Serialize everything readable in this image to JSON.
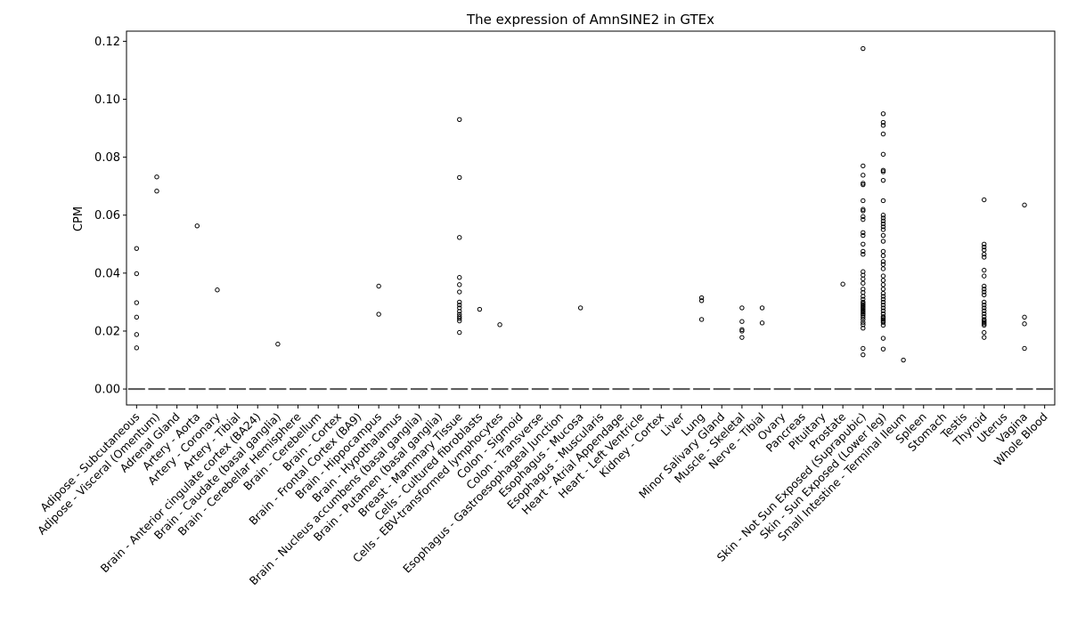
{
  "chart_data": {
    "type": "box",
    "title": "The expression of AmnSINE2 in GTEx",
    "xlabel": "",
    "ylabel": "CPM",
    "ylim": [
      -0.0055,
      0.1235
    ],
    "yticks": [
      0.0,
      0.02,
      0.04,
      0.06,
      0.08,
      0.1,
      0.12
    ],
    "grid": false,
    "categories": [
      "Adipose - Subcutaneous",
      "Adipose - Visceral (Omentum)",
      "Adrenal Gland",
      "Artery - Aorta",
      "Artery - Coronary",
      "Artery - Tibial",
      "Brain - Anterior cingulate cortex (BA24)",
      "Brain - Caudate (basal ganglia)",
      "Brain - Cerebellar Hemisphere",
      "Brain - Cerebellum",
      "Brain - Cortex",
      "Brain - Frontal Cortex (BA9)",
      "Brain - Hippocampus",
      "Brain - Hypothalamus",
      "Brain - Nucleus accumbens (basal ganglia)",
      "Brain - Putamen (basal ganglia)",
      "Breast - Mammary Tissue",
      "Cells - Cultured fibroblasts",
      "Cells - EBV-transformed lymphocytes",
      "Colon - Sigmoid",
      "Colon - Transverse",
      "Esophagus - Gastroesophageal Junction",
      "Esophagus - Mucosa",
      "Esophagus - Muscularis",
      "Heart - Atrial Appendage",
      "Heart - Left Ventricle",
      "Kidney - Cortex",
      "Liver",
      "Lung",
      "Minor Salivary Gland",
      "Muscle - Skeletal",
      "Nerve - Tibial",
      "Ovary",
      "Pancreas",
      "Pituitary",
      "Prostate",
      "Skin - Not Sun Exposed (Suprapubic)",
      "Skin - Sun Exposed (Lower leg)",
      "Small Intestine - Terminal Ileum",
      "Spleen",
      "Stomach",
      "Testis",
      "Thyroid",
      "Uterus",
      "Vagina",
      "Whole Blood"
    ],
    "median": 0,
    "outliers": [
      [
        0.0485,
        0.0398,
        0.0298,
        0.0248,
        0.0188,
        0.0142
      ],
      [
        0.0732,
        0.0683
      ],
      [],
      [
        0.0563
      ],
      [
        0.0342
      ],
      [],
      [],
      [
        0.0155
      ],
      [],
      [],
      [],
      [],
      [
        0.0355,
        0.0258
      ],
      [],
      [],
      [],
      [
        0.093,
        0.073,
        0.0523,
        0.0385,
        0.036,
        0.0335,
        0.03,
        0.029,
        0.028,
        0.0268,
        0.0258,
        0.025,
        0.0243,
        0.0235,
        0.0195
      ],
      [
        0.0275
      ],
      [
        0.0222
      ],
      [],
      [],
      [],
      [
        0.028
      ],
      [],
      [],
      [],
      [],
      [],
      [
        0.0315,
        0.0305,
        0.024
      ],
      [],
      [
        0.028,
        0.0233,
        0.0205,
        0.02,
        0.0178
      ],
      [
        0.028,
        0.0228
      ],
      [],
      [],
      [],
      [
        0.0362
      ],
      [
        0.1175,
        0.077,
        0.0738,
        0.071,
        0.0705,
        0.065,
        0.062,
        0.0615,
        0.0595,
        0.0585,
        0.054,
        0.053,
        0.05,
        0.0475,
        0.0465,
        0.0405,
        0.0393,
        0.038,
        0.0365,
        0.0345,
        0.0333,
        0.032,
        0.031,
        0.03,
        0.0295,
        0.029,
        0.0285,
        0.028,
        0.0275,
        0.027,
        0.0265,
        0.026,
        0.0255,
        0.0248,
        0.024,
        0.023,
        0.0222,
        0.021,
        0.014,
        0.0118
      ],
      [
        0.095,
        0.092,
        0.091,
        0.088,
        0.081,
        0.0755,
        0.075,
        0.072,
        0.065,
        0.06,
        0.059,
        0.058,
        0.057,
        0.056,
        0.055,
        0.053,
        0.051,
        0.0475,
        0.046,
        0.044,
        0.043,
        0.0415,
        0.039,
        0.0375,
        0.036,
        0.0345,
        0.033,
        0.032,
        0.031,
        0.03,
        0.029,
        0.028,
        0.027,
        0.026,
        0.025,
        0.0245,
        0.024,
        0.0235,
        0.023,
        0.022,
        0.0175,
        0.0138
      ],
      [
        0.01
      ],
      [],
      [],
      [],
      [
        0.0653,
        0.05,
        0.049,
        0.048,
        0.0465,
        0.0455,
        0.041,
        0.039,
        0.0355,
        0.0345,
        0.0335,
        0.0325,
        0.03,
        0.029,
        0.028,
        0.027,
        0.026,
        0.025,
        0.024,
        0.0235,
        0.023,
        0.0225,
        0.022,
        0.0195,
        0.0178
      ],
      [],
      [
        0.0635,
        0.0248,
        0.0225,
        0.014
      ],
      []
    ]
  }
}
